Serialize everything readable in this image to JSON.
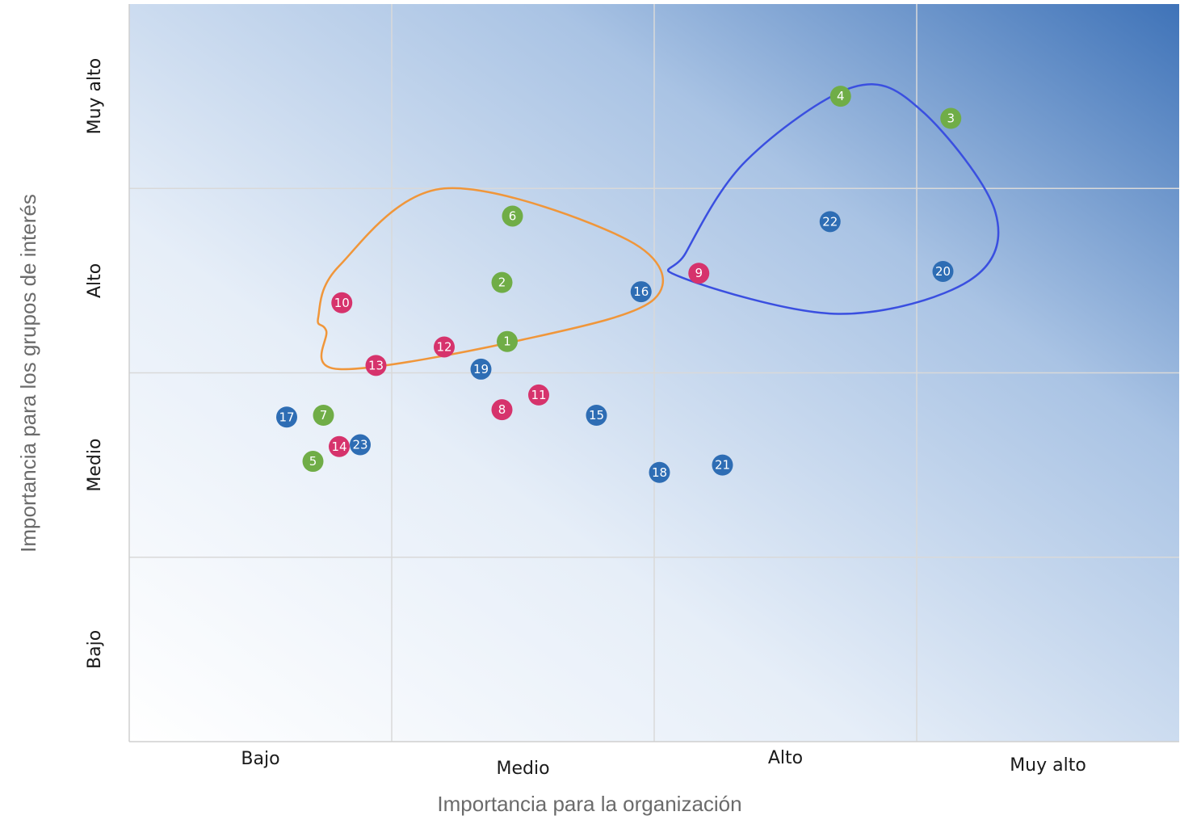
{
  "chart_data": {
    "type": "scatter",
    "title": "",
    "xlabel": "Importancia para la organización",
    "ylabel": "Importancia para los grupos de interés",
    "x_ticks": [
      "Bajo",
      "Medio",
      "Alto",
      "Muy  alto"
    ],
    "y_ticks": [
      "Bajo",
      "Medio",
      "Alto",
      "Muy alto"
    ],
    "xlim": [
      0,
      4
    ],
    "ylim": [
      0,
      4
    ],
    "grid": true,
    "legend": "none",
    "colors": {
      "green": "#70ad47",
      "magenta": "#d6336c",
      "blue": "#2e6db4",
      "orange_outline": "#f0963a",
      "blue_outline": "#3a4fe0",
      "gradient_light": "#ffffff",
      "gradient_dark": "#3f73b8",
      "grid": "#d9d9d9"
    },
    "points": [
      {
        "label": "1",
        "x": 1.44,
        "y": 2.17,
        "color": "green"
      },
      {
        "label": "2",
        "x": 1.42,
        "y": 2.49,
        "color": "green"
      },
      {
        "label": "3",
        "x": 3.13,
        "y": 3.38,
        "color": "green"
      },
      {
        "label": "4",
        "x": 2.71,
        "y": 3.5,
        "color": "green"
      },
      {
        "label": "5",
        "x": 0.7,
        "y": 1.52,
        "color": "green"
      },
      {
        "label": "6",
        "x": 1.46,
        "y": 2.85,
        "color": "green"
      },
      {
        "label": "7",
        "x": 0.74,
        "y": 1.77,
        "color": "green"
      },
      {
        "label": "8",
        "x": 1.42,
        "y": 1.8,
        "color": "magenta"
      },
      {
        "label": "9",
        "x": 2.17,
        "y": 2.54,
        "color": "magenta"
      },
      {
        "label": "10",
        "x": 0.81,
        "y": 2.38,
        "color": "magenta"
      },
      {
        "label": "11",
        "x": 1.56,
        "y": 1.88,
        "color": "magenta"
      },
      {
        "label": "12",
        "x": 1.2,
        "y": 2.14,
        "color": "magenta"
      },
      {
        "label": "13",
        "x": 0.94,
        "y": 2.04,
        "color": "magenta"
      },
      {
        "label": "14",
        "x": 0.8,
        "y": 1.6,
        "color": "magenta"
      },
      {
        "label": "15",
        "x": 1.78,
        "y": 1.77,
        "color": "blue"
      },
      {
        "label": "16",
        "x": 1.95,
        "y": 2.44,
        "color": "blue"
      },
      {
        "label": "17",
        "x": 0.6,
        "y": 1.76,
        "color": "blue"
      },
      {
        "label": "18",
        "x": 2.02,
        "y": 1.46,
        "color": "blue"
      },
      {
        "label": "19",
        "x": 1.34,
        "y": 2.02,
        "color": "blue"
      },
      {
        "label": "20",
        "x": 3.1,
        "y": 2.55,
        "color": "blue"
      },
      {
        "label": "21",
        "x": 2.26,
        "y": 1.5,
        "color": "blue"
      },
      {
        "label": "22",
        "x": 2.67,
        "y": 2.82,
        "color": "blue"
      },
      {
        "label": "23",
        "x": 0.88,
        "y": 1.61,
        "color": "blue"
      }
    ],
    "groups": [
      {
        "color": "orange_outline",
        "points": [
          [
            0.75,
            2.23
          ],
          [
            0.8,
            2.02
          ],
          [
            1.5,
            2.18
          ],
          [
            2.0,
            2.4
          ],
          [
            1.9,
            2.72
          ],
          [
            1.2,
            3.0
          ],
          [
            0.8,
            2.58
          ],
          [
            0.72,
            2.3
          ]
        ]
      },
      {
        "color": "blue_outline",
        "points": [
          [
            2.1,
            2.52
          ],
          [
            2.7,
            2.32
          ],
          [
            3.2,
            2.5
          ],
          [
            3.3,
            2.87
          ],
          [
            3.02,
            3.42
          ],
          [
            2.76,
            3.55
          ],
          [
            2.35,
            3.15
          ],
          [
            2.12,
            2.65
          ]
        ]
      }
    ]
  }
}
